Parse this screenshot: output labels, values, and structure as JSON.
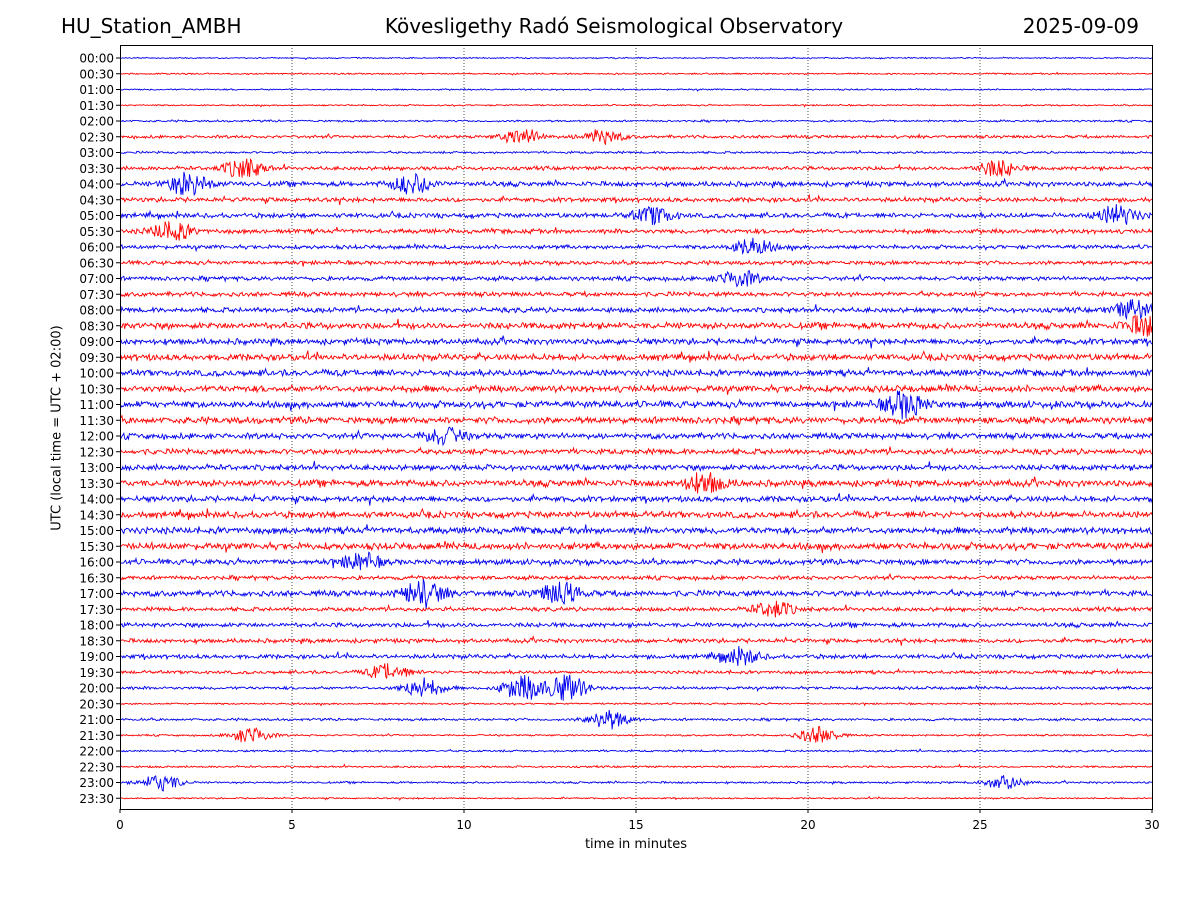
{
  "header": {
    "station": "HU_Station_AMBH",
    "observatory": "Kövesligethy Radó Seismological Observatory",
    "date": "2025-09-09"
  },
  "chart_data": {
    "type": "line",
    "title": "Kövesligethy Radó Seismological Observatory",
    "xlabel": "time in minutes",
    "ylabel": "UTC (local time = UTC + 02:00)",
    "xlim": [
      0,
      30
    ],
    "x_ticks": [
      "0",
      "5",
      "10",
      "15",
      "20",
      "25",
      "30"
    ],
    "grid": "vertical dotted lines at 5, 10, 15, 20, 25",
    "y_ticks": [
      "00:00",
      "00:30",
      "01:00",
      "01:30",
      "02:00",
      "02:30",
      "03:00",
      "03:30",
      "04:00",
      "04:30",
      "05:00",
      "05:30",
      "06:00",
      "06:30",
      "07:00",
      "07:30",
      "08:00",
      "08:30",
      "09:00",
      "09:30",
      "10:00",
      "10:30",
      "11:00",
      "11:30",
      "12:00",
      "12:30",
      "13:00",
      "13:30",
      "14:00",
      "14:30",
      "15:00",
      "15:30",
      "16:00",
      "16:30",
      "17:00",
      "17:30",
      "18:00",
      "18:30",
      "19:00",
      "19:30",
      "20:00",
      "20:30",
      "21:00",
      "21:30",
      "22:00",
      "22:30",
      "23:00",
      "23:30"
    ],
    "trace_colors": [
      "#0000ee",
      "#ff0000"
    ],
    "trace_activity": [
      0.5,
      0.6,
      0.6,
      0.6,
      0.8,
      1.2,
      0.9,
      1.5,
      2.0,
      1.8,
      1.9,
      1.8,
      1.6,
      1.6,
      1.7,
      1.8,
      2.0,
      2.6,
      2.4,
      2.6,
      2.5,
      2.7,
      2.7,
      2.7,
      2.3,
      2.2,
      2.3,
      2.7,
      2.3,
      2.6,
      2.7,
      2.8,
      2.2,
      1.6,
      2.3,
      1.6,
      1.8,
      1.7,
      1.7,
      1.3,
      1.2,
      0.7,
      1.0,
      0.7,
      0.8,
      0.8,
      0.8,
      0.6
    ],
    "bursts": [
      {
        "trace": "02:30",
        "minute": 11.7,
        "strength": 2.5
      },
      {
        "trace": "02:30",
        "minute": 14.0,
        "strength": 2.2
      },
      {
        "trace": "03:30",
        "minute": 3.6,
        "strength": 3.0
      },
      {
        "trace": "03:30",
        "minute": 25.5,
        "strength": 2.5
      },
      {
        "trace": "04:00",
        "minute": 2.0,
        "strength": 3.5
      },
      {
        "trace": "04:00",
        "minute": 8.5,
        "strength": 3.0
      },
      {
        "trace": "05:00",
        "minute": 15.5,
        "strength": 2.5
      },
      {
        "trace": "05:00",
        "minute": 29.0,
        "strength": 3.0
      },
      {
        "trace": "05:30",
        "minute": 1.5,
        "strength": 3.0
      },
      {
        "trace": "06:00",
        "minute": 18.4,
        "strength": 2.5
      },
      {
        "trace": "07:00",
        "minute": 18.0,
        "strength": 2.5
      },
      {
        "trace": "08:00",
        "minute": 29.5,
        "strength": 3.0
      },
      {
        "trace": "08:30",
        "minute": 29.8,
        "strength": 3.0
      },
      {
        "trace": "11:00",
        "minute": 22.8,
        "strength": 4.0
      },
      {
        "trace": "12:00",
        "minute": 9.4,
        "strength": 2.5
      },
      {
        "trace": "13:30",
        "minute": 17.0,
        "strength": 3.0
      },
      {
        "trace": "16:00",
        "minute": 7.0,
        "strength": 2.5
      },
      {
        "trace": "17:00",
        "minute": 8.8,
        "strength": 4.0
      },
      {
        "trace": "17:00",
        "minute": 12.8,
        "strength": 3.5
      },
      {
        "trace": "17:30",
        "minute": 19.0,
        "strength": 2.5
      },
      {
        "trace": "19:00",
        "minute": 18.0,
        "strength": 2.5
      },
      {
        "trace": "19:30",
        "minute": 7.8,
        "strength": 2.5
      },
      {
        "trace": "20:00",
        "minute": 8.8,
        "strength": 3.0
      },
      {
        "trace": "20:00",
        "minute": 11.7,
        "strength": 4.0
      },
      {
        "trace": "20:00",
        "minute": 13.0,
        "strength": 4.0
      },
      {
        "trace": "21:00",
        "minute": 14.2,
        "strength": 3.0
      },
      {
        "trace": "21:30",
        "minute": 3.8,
        "strength": 2.5
      },
      {
        "trace": "21:30",
        "minute": 20.3,
        "strength": 2.5
      },
      {
        "trace": "23:00",
        "minute": 1.2,
        "strength": 2.5
      },
      {
        "trace": "23:00",
        "minute": 25.7,
        "strength": 2.0
      }
    ]
  }
}
